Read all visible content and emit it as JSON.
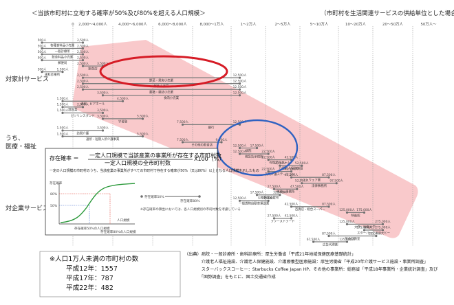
{
  "header": {
    "left_title": "＜当該市町村に立地する確率が50%及び80%を超える人口規模＞",
    "right_title": "（市町村を生活関連サービスの供給単位とした場合）"
  },
  "axis": {
    "ticks": [
      "0",
      "2,000～4,000人",
      "4,000～6,000人",
      "6,000～8,000人",
      "8,000～1万人",
      "1～2万人",
      "2～5万人",
      "5～10万人",
      "10～20万人",
      "20～50万人",
      "50万人～"
    ]
  },
  "categories": {
    "retail": "対家計サービス",
    "medical_1": "うち、",
    "medical_2": "医療・福祉",
    "business": "対企業サービス"
  },
  "colors": {
    "band": "#f9c9cb",
    "red_oval": "#d61c26",
    "blue_oval": "#2f62c1",
    "bar": "#7d7d7d",
    "curve": "#2d9a3c",
    "marker_red": "#e23a2e",
    "marker_blue": "#3d66c9"
  },
  "services": [
    {
      "name": "各種食料品小売業",
      "p50": 500,
      "p80": 2500
    },
    {
      "name": "一般診療所",
      "p50": 500,
      "p80": 2500
    },
    {
      "name": "飲食料品小売業",
      "p50": 500,
      "p80": 2500
    },
    {
      "name": "郵便局",
      "p50": 500,
      "p80": 2500
    },
    {
      "name": "飲食店",
      "p50": 2500,
      "p80": 3500
    },
    {
      "name": "歯科診療所",
      "p50": 500,
      "p80": 1500
    },
    {
      "name": "野菜・果実小売業",
      "p50": 2500,
      "p80": 12500
    },
    {
      "name": "鮮魚小売業",
      "p50": 2500,
      "p80": 12500
    },
    {
      "name": "書籍・雑誌小売業",
      "p50": 2500,
      "p80": 12500
    },
    {
      "name": "食肉小売業",
      "p50": 3500,
      "p80": 12500
    },
    {
      "name": "酒屋、ビアホール",
      "p50": 1500,
      "p80": 4500
    },
    {
      "name": "理容業",
      "p50": 1500,
      "p80": 2500
    },
    {
      "name": "ガソリンスタンド",
      "p50": 1500,
      "p80": 3500
    },
    {
      "name": "学習塾",
      "p50": 3500,
      "p80": 5500
    },
    {
      "name": "銀行",
      "p50": 7500,
      "p80": 12500
    },
    {
      "name": "訪問介護",
      "p50": 1500,
      "p80": 3500
    },
    {
      "name": "通所・短期入所介護事業",
      "p50": 1500,
      "p80": 5500
    },
    {
      "name": "その他の飲食店",
      "p50": 7500,
      "p80": 9500
    },
    {
      "name": "病院",
      "p50": 12500,
      "p80": 17500
    },
    {
      "name": "救急告示病院",
      "p50": 12500,
      "p80": 22500
    },
    {
      "name": "有料老人ホーム",
      "p50": 22500,
      "p80": 42500
    },
    {
      "name": "介護老人保健施設",
      "p50": 32500,
      "p80": 52500
    },
    {
      "name": "訪問介護ステーション",
      "p50": 22500,
      "p80": 42500
    },
    {
      "name": "ソフトウェア業",
      "p50": 42500,
      "p80": 87500
    },
    {
      "name": "法律事務所",
      "p50": 52500,
      "p80": 97500
    },
    {
      "name": "税理士事務所",
      "p50": 27500,
      "p80": 47500
    },
    {
      "name": "公共職業安定所",
      "p50": 17500,
      "p80": 32500
    },
    {
      "name": "一般貨物自動車運送業",
      "p50": 12500,
      "p80": 22500
    },
    {
      "name": "百貨店・総合スーパー",
      "p50": 42500,
      "p80": 87500
    },
    {
      "name": "映画館",
      "p50": 125000,
      "p80": 175000
    },
    {
      "name": "ファーストフード",
      "p50": 27500,
      "p80": 42500
    },
    {
      "name": "大学・短期大学",
      "p50": 125000,
      "p80": 275000
    },
    {
      "name": "スターバックスコーヒー",
      "p50": 175000,
      "p80": 275000
    },
    {
      "name": "英会話教室",
      "p50": 87500,
      "p80": 225000
    },
    {
      "name": "広告代理業",
      "p50": 67500,
      "p80": 125000
    }
  ],
  "formula": {
    "lhs": "存在確率 ＝",
    "numerator": "一定人口規模で当該産業の事業所が存在する市町村数",
    "denominator": "一定人口規模の全市町村数",
    "times": "X100（%）",
    "description": "一定の人口規模の市町村のうち、当該産業の事業所がすべての市町村で存在する確率が50%（又は80%）以上となる人口規模を示したもの",
    "y_label": "存在確率",
    "y_80": "80%",
    "y_50": "50%",
    "x_label": "人口規模",
    "legend_50": "存在確率50%",
    "legend_80": "存在確率80%",
    "x_mark_50": "存在確率50%の人口規模",
    "x_mark_80": "存在確率80%の人口規模",
    "note": "※存在確率の算出においては、各人口規模別の市町村数を考慮している"
  },
  "stats": {
    "title": "※人口1万人未満の市町村の数",
    "rows": [
      "平成12年：1557",
      "平成17年：787",
      "平成22年：482"
    ]
  },
  "source": {
    "lines": [
      "（出典）病院・一般診療所・歯科診療所：厚生労働省「平成21年地域保健医療基礎統計」",
      "　　　　介護老人福祉施設、介護老人保健施設、介護療養型医療施設：厚生労働省「平成20年介護サービス施設・事業所調査」",
      "　　　　スターバックスコーヒー：Starbucks Coffee Japan HP、その他の事業所：総務省「平成18年事業所・企業統計調査」及び",
      "　　　　「国勢調査」をもとに、国土交通省作成"
    ]
  }
}
